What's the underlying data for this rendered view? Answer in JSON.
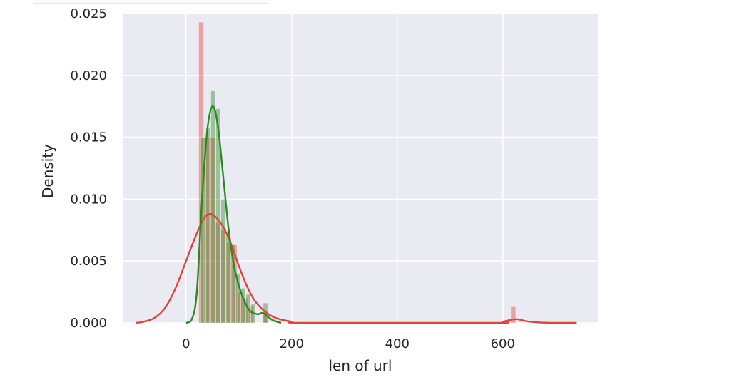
{
  "chart_data": {
    "type": "bar",
    "xlabel": "len of url",
    "ylabel": "Density",
    "xlim": [
      -120,
      780
    ],
    "ylim": [
      0,
      0.025
    ],
    "grid": true,
    "x_ticks": [
      0,
      200,
      400,
      600
    ],
    "x_tick_labels": [
      "0",
      "200",
      "400",
      "600"
    ],
    "y_ticks": [
      0.0,
      0.005,
      0.01,
      0.015,
      0.02,
      0.025
    ],
    "y_tick_labels": [
      "0.000",
      "0.005",
      "0.010",
      "0.015",
      "0.020",
      "0.025"
    ],
    "colors": {
      "plot_bg": "#eaeaf2",
      "grid": "#ffffff",
      "red_series": "#e8413a",
      "green_series": "#2a8a22"
    },
    "series": [
      {
        "color": "#e8413a",
        "bin_width": 10.5,
        "histogram": [
          {
            "x0": 24,
            "density": 0.0243
          },
          {
            "x0": 34.5,
            "density": 0.015
          },
          {
            "x0": 45,
            "density": 0.015
          },
          {
            "x0": 55.5,
            "density": 0.0081
          },
          {
            "x0": 66,
            "density": 0.0075
          },
          {
            "x0": 76.5,
            "density": 0.0065
          },
          {
            "x0": 87,
            "density": 0.0063
          },
          {
            "x0": 97.5,
            "density": 0.0025
          },
          {
            "x0": 108,
            "density": 0.002
          },
          {
            "x0": 118.5,
            "density": 0.0013
          },
          {
            "x0": 146,
            "density": 0.001
          },
          {
            "x0": 615,
            "density": 0.0013
          }
        ],
        "kde": [
          [
            -95,
            0.0
          ],
          [
            -80,
            0.0001
          ],
          [
            -60,
            0.0004
          ],
          [
            -40,
            0.0012
          ],
          [
            -20,
            0.0028
          ],
          [
            0,
            0.005
          ],
          [
            20,
            0.0072
          ],
          [
            35,
            0.0085
          ],
          [
            45,
            0.0088
          ],
          [
            55,
            0.0086
          ],
          [
            70,
            0.0078
          ],
          [
            85,
            0.0064
          ],
          [
            100,
            0.0046
          ],
          [
            115,
            0.003
          ],
          [
            130,
            0.0018
          ],
          [
            150,
            0.0009
          ],
          [
            170,
            0.0004
          ],
          [
            200,
            0.0001
          ],
          [
            230,
            0.0
          ],
          [
            580,
            0.0
          ],
          [
            600,
            0.0001
          ],
          [
            625,
            0.0003
          ],
          [
            650,
            0.0001
          ],
          [
            690,
            0.0
          ],
          [
            740,
            0.0
          ]
        ]
      },
      {
        "color": "#2a8a22",
        "bin_width": 9.5,
        "histogram": [
          {
            "x0": 28,
            "density": 0.015
          },
          {
            "x0": 37.5,
            "density": 0.0158
          },
          {
            "x0": 47,
            "density": 0.0188
          },
          {
            "x0": 56.5,
            "density": 0.0173
          },
          {
            "x0": 66,
            "density": 0.01
          },
          {
            "x0": 75.5,
            "density": 0.0073
          },
          {
            "x0": 85,
            "density": 0.0063
          },
          {
            "x0": 94.5,
            "density": 0.004
          },
          {
            "x0": 104,
            "density": 0.0028
          },
          {
            "x0": 113.5,
            "density": 0.0023
          },
          {
            "x0": 123,
            "density": 0.0015
          },
          {
            "x0": 146,
            "density": 0.0016
          }
        ],
        "kde": [
          [
            0,
            0.0
          ],
          [
            10,
            0.0002
          ],
          [
            20,
            0.0023
          ],
          [
            30,
            0.0098
          ],
          [
            40,
            0.0155
          ],
          [
            50,
            0.0175
          ],
          [
            60,
            0.016
          ],
          [
            70,
            0.012
          ],
          [
            80,
            0.0078
          ],
          [
            90,
            0.0048
          ],
          [
            100,
            0.003
          ],
          [
            110,
            0.0018
          ],
          [
            120,
            0.001
          ],
          [
            135,
            0.0007
          ],
          [
            145,
            0.0008
          ],
          [
            155,
            0.0005
          ],
          [
            165,
            0.0002
          ],
          [
            180,
            0.0
          ]
        ]
      }
    ]
  }
}
